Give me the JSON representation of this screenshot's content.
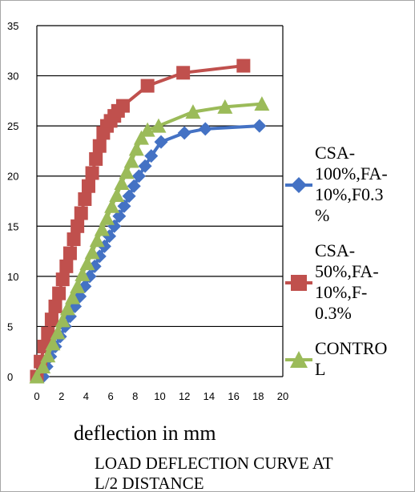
{
  "chart_data": {
    "type": "line",
    "xlabel": "deflection in mm",
    "ylabel": "",
    "caption_lines": [
      "LOAD DEFLECTION CURVE AT",
      "L/2 DISTANCE"
    ],
    "xlim": [
      0,
      20
    ],
    "ylim": [
      0,
      35
    ],
    "x_ticks": [
      "0",
      "2",
      "4",
      "6",
      "8",
      "10",
      "12",
      "14",
      "16",
      "18",
      "20"
    ],
    "y_ticks": [
      "0",
      "5",
      "10",
      "15",
      "20",
      "25",
      "30",
      "35"
    ],
    "grid": "horizontal",
    "legend_position": "right",
    "series": [
      {
        "name": "CSA-100%,FA-10%,F0.3%",
        "legend_lines": [
          "CSA-",
          "100%,FA-",
          "10%,F0.3",
          "%"
        ],
        "color": "#4472c4",
        "marker": "diamond",
        "x": [
          0.5,
          0.8,
          1.1,
          1.5,
          1.9,
          2.3,
          2.7,
          3.1,
          3.5,
          3.9,
          4.3,
          4.7,
          5.1,
          5.5,
          5.9,
          6.3,
          6.7,
          7.1,
          7.5,
          7.9,
          8.3,
          8.8,
          9.3,
          10.1,
          12.0,
          13.7,
          18.1
        ],
        "y": [
          0,
          1.0,
          2.0,
          3.0,
          4.0,
          5.0,
          6.0,
          7.0,
          8.0,
          9.0,
          10.0,
          11.0,
          12.0,
          13.0,
          14.0,
          15.0,
          16.0,
          17.0,
          18.0,
          19.0,
          20.0,
          21.0,
          22.0,
          23.4,
          24.3,
          24.7,
          25.0
        ]
      },
      {
        "name": "CSA-50%,FA-10%,F-0.3%",
        "legend_lines": [
          "CSA-",
          "50%,FA-",
          "10%,F-",
          "0.3%"
        ],
        "color": "#c0504d",
        "marker": "square",
        "x": [
          0,
          0.3,
          0.6,
          0.9,
          1.2,
          1.5,
          1.8,
          2.1,
          2.4,
          2.7,
          3.0,
          3.3,
          3.6,
          3.9,
          4.2,
          4.5,
          4.8,
          5.1,
          5.4,
          5.7,
          6.0,
          6.3,
          6.6,
          7.0,
          9.0,
          11.9,
          16.8
        ],
        "y": [
          0,
          1.5,
          3.0,
          4.3,
          5.7,
          7.0,
          8.3,
          9.7,
          11.0,
          12.3,
          13.7,
          15.0,
          16.3,
          17.7,
          19.0,
          20.3,
          21.7,
          23.0,
          24.3,
          25.0,
          25.5,
          26.0,
          26.5,
          27.0,
          29.0,
          30.3,
          31.0
        ]
      },
      {
        "name": "CONTROL",
        "legend_lines": [
          "CONTRO",
          "L"
        ],
        "color": "#9bbb59",
        "marker": "triangle",
        "x": [
          0,
          0.5,
          0.9,
          1.3,
          1.7,
          2.1,
          2.5,
          2.9,
          3.3,
          3.7,
          4.1,
          4.5,
          4.9,
          5.3,
          5.7,
          6.1,
          6.5,
          6.9,
          7.3,
          7.7,
          8.1,
          8.5,
          9.0,
          9.9,
          12.7,
          15.3,
          18.3
        ],
        "y": [
          0,
          1.0,
          2.1,
          3.3,
          4.4,
          5.6,
          6.8,
          7.9,
          9.0,
          10.2,
          11.3,
          12.4,
          13.6,
          14.7,
          15.8,
          17.0,
          18.1,
          19.3,
          20.4,
          21.5,
          22.7,
          23.8,
          24.6,
          25.0,
          26.4,
          26.9,
          27.2
        ]
      }
    ]
  }
}
